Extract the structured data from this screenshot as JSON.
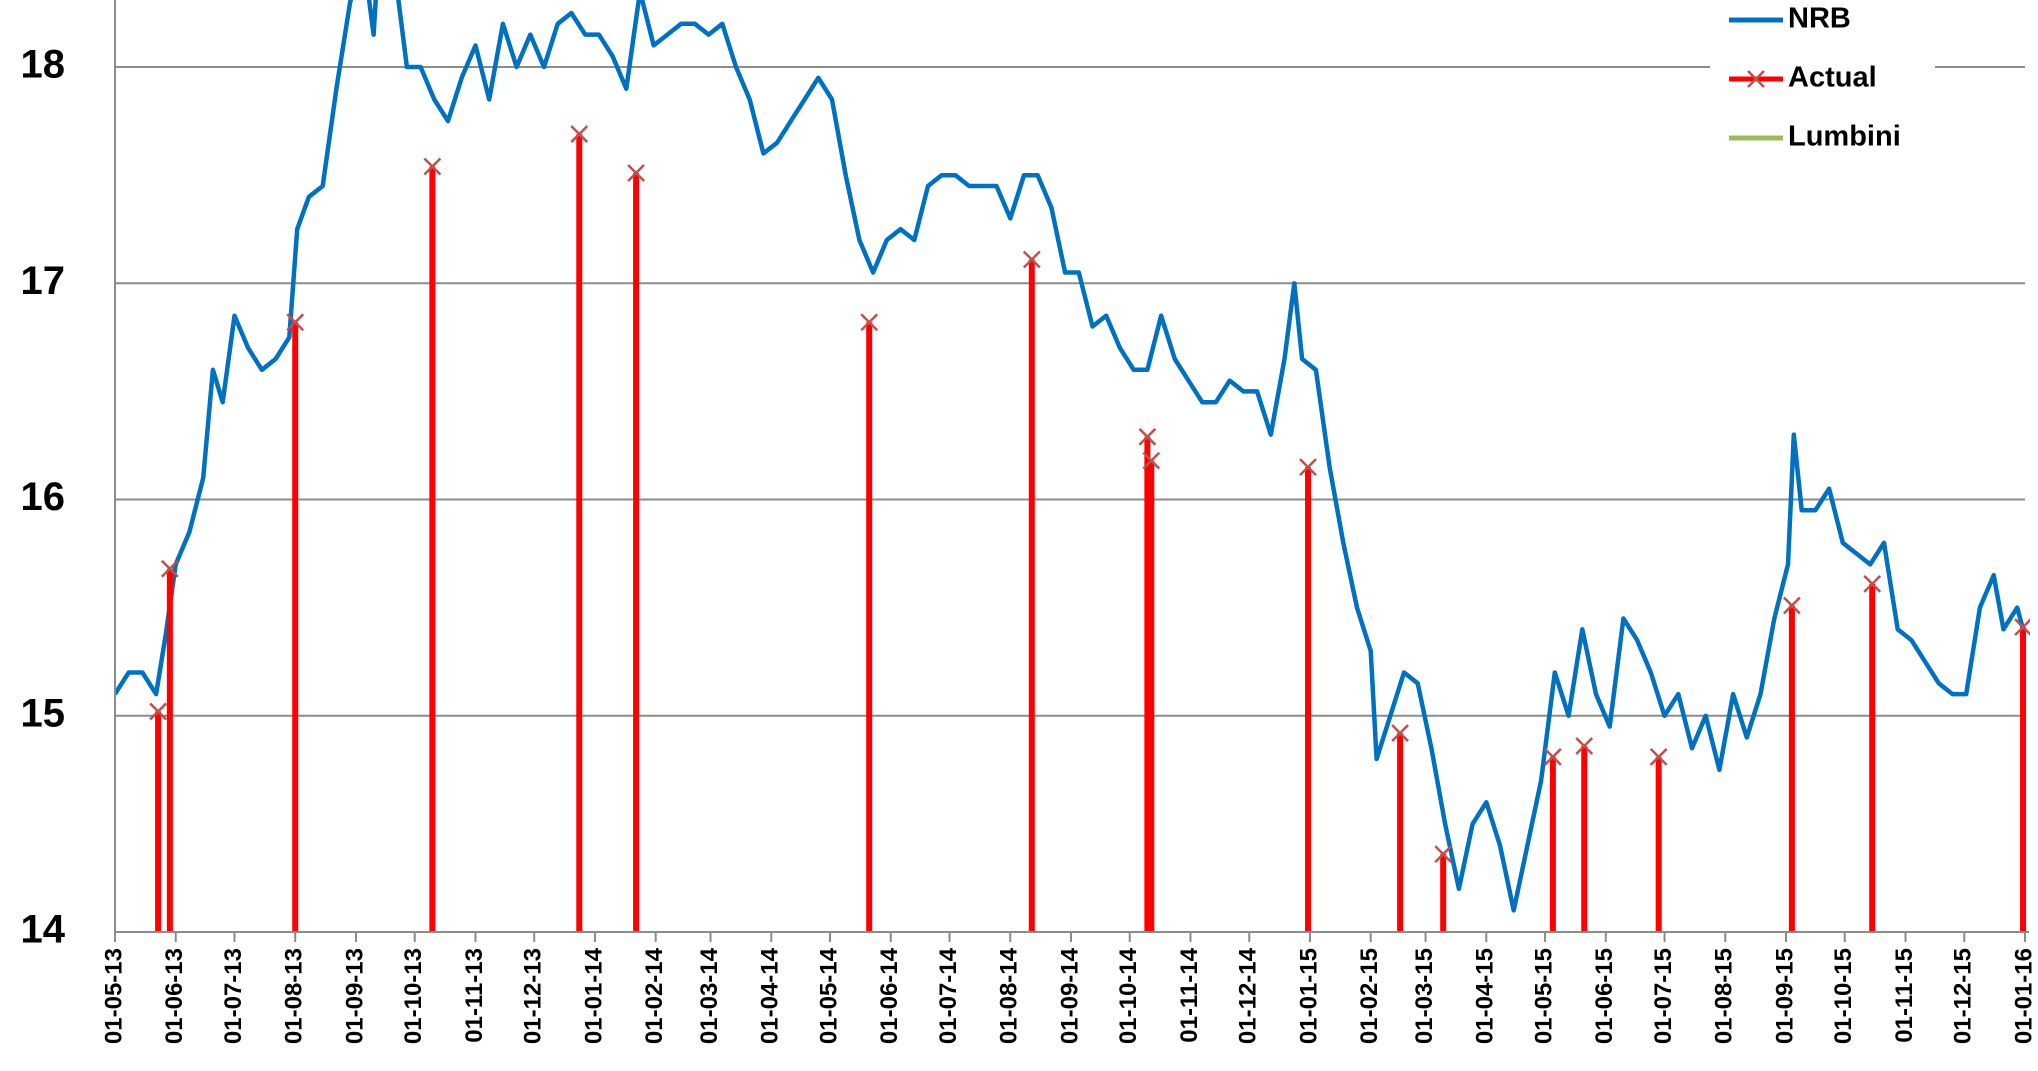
{
  "chart_data": {
    "type": "line",
    "xlim": [
      "2013-05-01",
      "2016-01-01"
    ],
    "xticks": [
      {
        "value": "2013-05-01",
        "label": "01-05-13"
      },
      {
        "value": "2013-06-01",
        "label": "01-06-13"
      },
      {
        "value": "2013-07-01",
        "label": "01-07-13"
      },
      {
        "value": "2013-08-01",
        "label": "01-08-13"
      },
      {
        "value": "2013-09-01",
        "label": "01-09-13"
      },
      {
        "value": "2013-10-01",
        "label": "01-10-13"
      },
      {
        "value": "2013-11-01",
        "label": "01-11-13"
      },
      {
        "value": "2013-12-01",
        "label": "01-12-13"
      },
      {
        "value": "2014-01-01",
        "label": "01-01-14"
      },
      {
        "value": "2014-02-01",
        "label": "01-02-14"
      },
      {
        "value": "2014-03-01",
        "label": "01-03-14"
      },
      {
        "value": "2014-04-01",
        "label": "01-04-14"
      },
      {
        "value": "2014-05-01",
        "label": "01-05-14"
      },
      {
        "value": "2014-06-01",
        "label": "01-06-14"
      },
      {
        "value": "2014-07-01",
        "label": "01-07-14"
      },
      {
        "value": "2014-08-01",
        "label": "01-08-14"
      },
      {
        "value": "2014-09-01",
        "label": "01-09-14"
      },
      {
        "value": "2014-10-01",
        "label": "01-10-14"
      },
      {
        "value": "2014-11-01",
        "label": "01-11-14"
      },
      {
        "value": "2014-12-01",
        "label": "01-12-14"
      },
      {
        "value": "2015-01-01",
        "label": "01-01-15"
      },
      {
        "value": "2015-02-01",
        "label": "01-02-15"
      },
      {
        "value": "2015-03-01",
        "label": "01-03-15"
      },
      {
        "value": "2015-04-01",
        "label": "01-04-15"
      },
      {
        "value": "2015-05-01",
        "label": "01-05-15"
      },
      {
        "value": "2015-06-01",
        "label": "01-06-15"
      },
      {
        "value": "2015-07-01",
        "label": "01-07-15"
      },
      {
        "value": "2015-08-01",
        "label": "01-08-15"
      },
      {
        "value": "2015-09-01",
        "label": "01-09-15"
      },
      {
        "value": "2015-10-01",
        "label": "01-10-15"
      },
      {
        "value": "2015-11-01",
        "label": "01-11-15"
      },
      {
        "value": "2015-12-01",
        "label": "01-12-15"
      },
      {
        "value": "2016-01-01",
        "label": "01-01-16"
      }
    ],
    "ylim": [
      14,
      18.31
    ],
    "yticks": [
      14,
      15,
      16,
      17,
      18
    ],
    "grid": true,
    "legend": "top-right",
    "series": [
      {
        "name": "NRB",
        "color": "#0070c0",
        "style": "line",
        "x": [
          "2013-05-01",
          "2013-05-08",
          "2013-05-15",
          "2013-05-22",
          "2013-05-27",
          "2013-06-01",
          "2013-06-08",
          "2013-06-15",
          "2013-06-20",
          "2013-06-25",
          "2013-07-01",
          "2013-07-08",
          "2013-07-15",
          "2013-07-22",
          "2013-07-29",
          "2013-08-02",
          "2013-08-08",
          "2013-08-15",
          "2013-08-22",
          "2013-08-29",
          "2013-09-05",
          "2013-09-10",
          "2013-09-13",
          "2013-09-20",
          "2013-09-27",
          "2013-10-04",
          "2013-10-11",
          "2013-10-18",
          "2013-10-25",
          "2013-11-01",
          "2013-11-08",
          "2013-11-15",
          "2013-11-22",
          "2013-11-29",
          "2013-12-06",
          "2013-12-13",
          "2013-12-20",
          "2013-12-27",
          "2014-01-03",
          "2014-01-10",
          "2014-01-17",
          "2014-01-24",
          "2014-01-31",
          "2014-02-07",
          "2014-02-14",
          "2014-02-21",
          "2014-02-28",
          "2014-03-07",
          "2014-03-14",
          "2014-03-21",
          "2014-03-28",
          "2014-04-04",
          "2014-04-11",
          "2014-04-18",
          "2014-04-25",
          "2014-05-02",
          "2014-05-09",
          "2014-05-16",
          "2014-05-23",
          "2014-05-30",
          "2014-06-06",
          "2014-06-13",
          "2014-06-20",
          "2014-06-27",
          "2014-07-04",
          "2014-07-11",
          "2014-07-18",
          "2014-07-25",
          "2014-08-01",
          "2014-08-08",
          "2014-08-15",
          "2014-08-22",
          "2014-08-29",
          "2014-09-05",
          "2014-09-12",
          "2014-09-19",
          "2014-09-26",
          "2014-10-03",
          "2014-10-10",
          "2014-10-17",
          "2014-10-24",
          "2014-10-31",
          "2014-11-07",
          "2014-11-14",
          "2014-11-21",
          "2014-11-28",
          "2014-12-05",
          "2014-12-12",
          "2014-12-19",
          "2014-12-24",
          "2014-12-28",
          "2015-01-04",
          "2015-01-11",
          "2015-01-18",
          "2015-01-25",
          "2015-02-01",
          "2015-02-04",
          "2015-02-11",
          "2015-02-18",
          "2015-02-25",
          "2015-03-04",
          "2015-03-11",
          "2015-03-18",
          "2015-03-25",
          "2015-04-01",
          "2015-04-08",
          "2015-04-15",
          "2015-04-22",
          "2015-04-29",
          "2015-05-06",
          "2015-05-13",
          "2015-05-20",
          "2015-05-27",
          "2015-06-03",
          "2015-06-10",
          "2015-06-17",
          "2015-06-24",
          "2015-07-01",
          "2015-07-08",
          "2015-07-15",
          "2015-07-22",
          "2015-07-29",
          "2015-08-05",
          "2015-08-12",
          "2015-08-19",
          "2015-08-26",
          "2015-09-02",
          "2015-09-05",
          "2015-09-09",
          "2015-09-16",
          "2015-09-23",
          "2015-09-30",
          "2015-10-07",
          "2015-10-14",
          "2015-10-21",
          "2015-10-28",
          "2015-11-04",
          "2015-11-11",
          "2015-11-18",
          "2015-11-25",
          "2015-12-02",
          "2015-12-09",
          "2015-12-16",
          "2015-12-21",
          "2015-12-28",
          "2015-12-31"
        ],
        "values": [
          15.1,
          15.2,
          15.2,
          15.1,
          15.38,
          15.7,
          15.85,
          16.1,
          16.6,
          16.45,
          16.85,
          16.7,
          16.6,
          16.65,
          16.75,
          17.25,
          17.4,
          17.45,
          17.9,
          18.3,
          18.5,
          18.15,
          18.6,
          18.5,
          18.0,
          18.0,
          17.85,
          17.75,
          17.95,
          18.1,
          17.85,
          18.2,
          18.0,
          18.15,
          18.0,
          18.2,
          18.25,
          18.15,
          18.15,
          18.05,
          17.9,
          18.35,
          18.1,
          18.15,
          18.2,
          18.2,
          18.15,
          18.2,
          18.0,
          17.85,
          17.6,
          17.65,
          17.75,
          17.85,
          17.95,
          17.85,
          17.5,
          17.2,
          17.05,
          17.2,
          17.25,
          17.2,
          17.45,
          17.5,
          17.5,
          17.45,
          17.45,
          17.45,
          17.3,
          17.5,
          17.5,
          17.35,
          17.05,
          17.05,
          16.8,
          16.85,
          16.7,
          16.6,
          16.6,
          16.85,
          16.65,
          16.55,
          16.45,
          16.45,
          16.55,
          16.5,
          16.5,
          16.3,
          16.65,
          17.0,
          16.65,
          16.6,
          16.15,
          15.8,
          15.5,
          15.3,
          14.8,
          15.0,
          15.2,
          15.15,
          14.85,
          14.5,
          14.2,
          14.5,
          14.6,
          14.4,
          14.1,
          14.4,
          14.7,
          15.2,
          15.0,
          15.4,
          15.1,
          14.95,
          15.45,
          15.35,
          15.2,
          15.0,
          15.1,
          14.85,
          15.0,
          14.75,
          15.1,
          14.9,
          15.1,
          15.45,
          15.7,
          16.3,
          15.95,
          15.95,
          16.05,
          15.8,
          15.75,
          15.7,
          15.8,
          15.4,
          15.35,
          15.25,
          15.15,
          15.1,
          15.1,
          15.5,
          15.65,
          15.4,
          15.5,
          15.4
        ]
      },
      {
        "name": "Actual",
        "color": "#ff0000",
        "marker_color": "#c0504d",
        "style": "stem",
        "x": [
          "2013-05-23",
          "2013-05-29",
          "2013-08-01",
          "2013-10-10",
          "2013-12-24",
          "2014-01-22",
          "2014-05-21",
          "2014-08-12",
          "2014-10-10",
          "2014-10-12",
          "2014-12-31",
          "2015-02-16",
          "2015-03-10",
          "2015-05-05",
          "2015-05-21",
          "2015-06-28",
          "2015-09-04",
          "2015-10-15",
          "2015-12-31"
        ],
        "values": [
          15.02,
          15.68,
          16.82,
          17.54,
          17.69,
          17.51,
          16.82,
          17.11,
          16.29,
          16.18,
          16.15,
          14.92,
          14.36,
          14.81,
          14.86,
          14.81,
          15.51,
          15.61,
          15.41
        ]
      },
      {
        "name": "Lumbini",
        "color": "#9bbb59",
        "style": "line",
        "x": [],
        "values": []
      }
    ]
  }
}
